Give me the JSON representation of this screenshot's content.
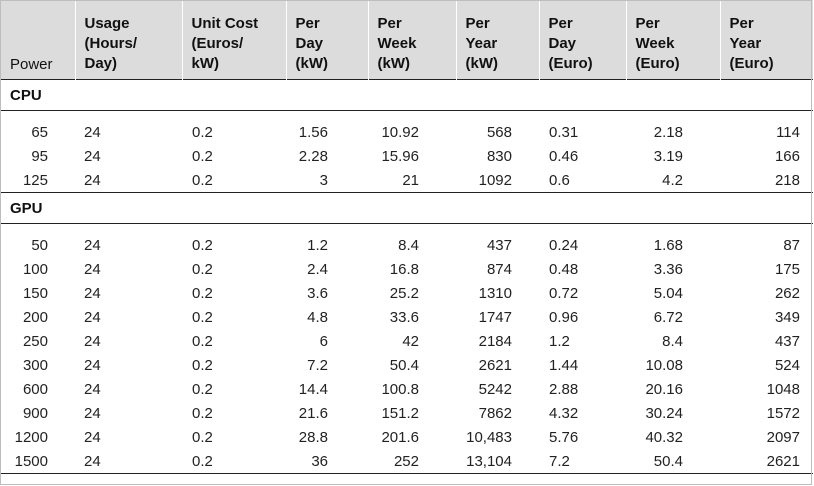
{
  "headers": [
    "Power",
    "Usage\n(Hours/\nDay)",
    "Unit Cost\n(Euros/\nkW)",
    "Per\nDay\n(kW)",
    "Per\nWeek\n(kW)",
    "Per\nYear\n(kW)",
    "Per\nDay\n(Euro)",
    "Per\nWeek\n(Euro)",
    "Per\nYear\n(Euro)"
  ],
  "groups": [
    {
      "label": "CPU",
      "rows": [
        [
          "65",
          "24",
          "0.2",
          "1.56",
          "10.92",
          "568",
          "0.31",
          "2.18",
          "114"
        ],
        [
          "95",
          "24",
          "0.2",
          "2.28",
          "15.96",
          "830",
          "0.46",
          "3.19",
          "166"
        ],
        [
          "125",
          "24",
          "0.2",
          "3",
          "21",
          "1092",
          "0.6",
          "4.2",
          "218"
        ]
      ]
    },
    {
      "label": "GPU",
      "rows": [
        [
          "50",
          "24",
          "0.2",
          "1.2",
          "8.4",
          "437",
          "0.24",
          "1.68",
          "87"
        ],
        [
          "100",
          "24",
          "0.2",
          "2.4",
          "16.8",
          "874",
          "0.48",
          "3.36",
          "175"
        ],
        [
          "150",
          "24",
          "0.2",
          "3.6",
          "25.2",
          "1310",
          "0.72",
          "5.04",
          "262"
        ],
        [
          "200",
          "24",
          "0.2",
          "4.8",
          "33.6",
          "1747",
          "0.96",
          "6.72",
          "349"
        ],
        [
          "250",
          "24",
          "0.2",
          "6",
          "42",
          "2184",
          "1.2",
          "8.4",
          "437"
        ],
        [
          "300",
          "24",
          "0.2",
          "7.2",
          "50.4",
          "2621",
          "1.44",
          "10.08",
          "524"
        ],
        [
          "600",
          "24",
          "0.2",
          "14.4",
          "100.8",
          "5242",
          "2.88",
          "20.16",
          "1048"
        ],
        [
          "900",
          "24",
          "0.2",
          "21.6",
          "151.2",
          "7862",
          "4.32",
          "30.24",
          "1572"
        ],
        [
          "1200",
          "24",
          "0.2",
          "28.8",
          "201.6",
          "10,483",
          "5.76",
          "40.32",
          "2097"
        ],
        [
          "1500",
          "24",
          "0.2",
          "36",
          "252",
          "13,104",
          "7.2",
          "50.4",
          "2621"
        ]
      ]
    }
  ]
}
